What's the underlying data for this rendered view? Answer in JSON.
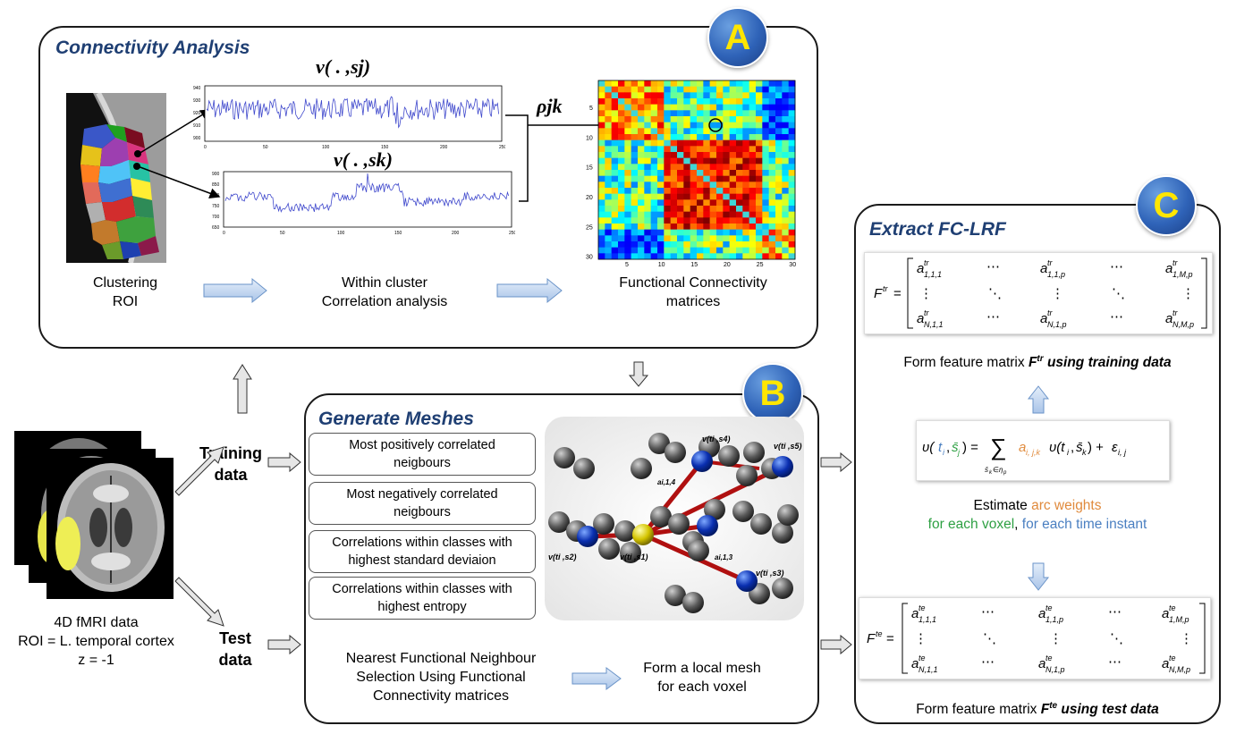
{
  "panel_a": {
    "badge": "A",
    "title": "Connectivity Analysis",
    "signal_top_label": "v( . ,sj)",
    "signal_bottom_label": "v( . ,sk)",
    "rho_label": "ρjk",
    "step1": [
      "Clustering",
      "ROI"
    ],
    "step2": [
      "Within cluster",
      "Correlation analysis"
    ],
    "step3": [
      "Functional Connectivity",
      "matrices"
    ],
    "matrix_ticks": [
      "5",
      "10",
      "15",
      "20",
      "25",
      "30"
    ],
    "top_plot_yticks": [
      "940",
      "930",
      "920",
      "910",
      "900"
    ],
    "top_plot_xticks": [
      "0",
      "50",
      "100",
      "150",
      "200",
      "250"
    ],
    "bottom_plot_yticks": [
      "900",
      "850",
      "800",
      "750",
      "700",
      "650"
    ],
    "bottom_plot_xticks": [
      "0",
      "50",
      "100",
      "150",
      "200",
      "250"
    ]
  },
  "panel_b": {
    "badge": "B",
    "title": "Generate Meshes",
    "criteria": [
      [
        "Most positively correlated",
        "neigbours"
      ],
      [
        "Most negatively correlated",
        "neigbours"
      ],
      [
        "Correlations within classes with",
        "highest standard deviaion"
      ],
      [
        "Correlations within classes with",
        "highest entropy"
      ]
    ],
    "bottom_left": [
      "Nearest Functional Neighbour",
      "Selection Using Functional",
      "Connectivity matrices"
    ],
    "bottom_right": [
      "Form a local mesh",
      "for each voxel"
    ],
    "mesh_labels": {
      "s1": "v(ti ,s1)",
      "s2": "v(ti ,s2)",
      "s3": "v(ti ,s3)",
      "s4": "v(ti ,s4)",
      "s5": "v(ti ,s5)",
      "a14": "ai,1,4",
      "a13": "ai,1,3"
    }
  },
  "panel_c": {
    "badge": "C",
    "title": "Extract FC-LRF",
    "ftr_caption_prefix": "Form feature matrix ",
    "ftr_caption_sym": "F",
    "ftr_caption_sup": "tr",
    "ftr_caption_suffix": " using training data",
    "estimate_line1_prefix": "Estimate ",
    "estimate_line1_hl": "arc weights",
    "estimate_line2_a": "for each voxel",
    "estimate_line2_sep": ", ",
    "estimate_line2_b": "for each time instant",
    "fte_caption_prefix": "Form feature matrix ",
    "fte_caption_sym": "F",
    "fte_caption_sup": "te",
    "fte_caption_suffix": " using test data"
  },
  "left": {
    "data_caption": [
      "4D fMRI data",
      "ROI = L. temporal cortex",
      "z = -1"
    ],
    "training": [
      "Training",
      "data"
    ],
    "test": [
      "Test",
      "data"
    ]
  },
  "colors": {
    "title_blue": "#1f3f73",
    "green": "#2ea043",
    "blue": "#4a7fc1",
    "orange": "#e08a3c",
    "arrow_fill": "#c7d9ef",
    "arrow_stroke": "#6a93c8"
  }
}
